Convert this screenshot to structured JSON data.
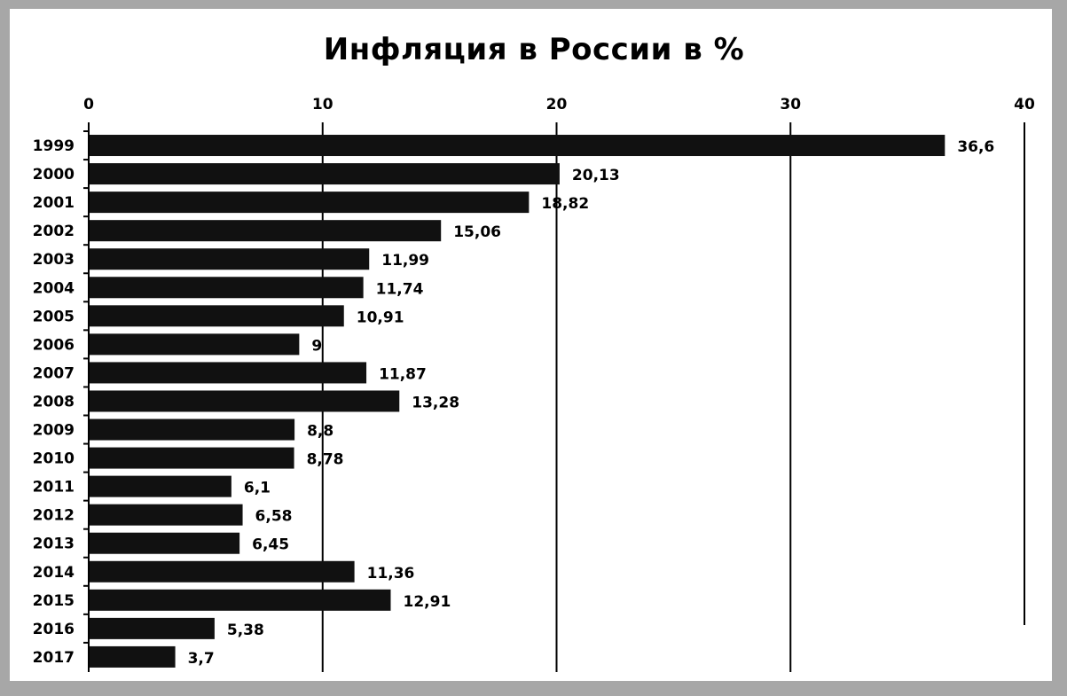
{
  "chart_data": {
    "type": "bar",
    "orientation": "horizontal",
    "title": "Инфляция в России в %",
    "categories": [
      "1999",
      "2000",
      "2001",
      "2002",
      "2003",
      "2004",
      "2005",
      "2006",
      "2007",
      "2008",
      "2009",
      "2010",
      "2011",
      "2012",
      "2013",
      "2014",
      "2015",
      "2016",
      "2017"
    ],
    "values": [
      36.6,
      20.13,
      18.82,
      15.06,
      11.99,
      11.74,
      10.91,
      9,
      11.87,
      13.28,
      8.8,
      8.78,
      6.1,
      6.58,
      6.45,
      11.36,
      12.91,
      5.38,
      3.7
    ],
    "value_labels": [
      "36,6",
      "20,13",
      "18,82",
      "15,06",
      "11,99",
      "11,74",
      "10,91",
      "9",
      "11,87",
      "13,28",
      "8,8",
      "8,78",
      "6,1",
      "6,58",
      "6,45",
      "11,36",
      "12,91",
      "5,38",
      "3,7"
    ],
    "xlim": [
      0,
      40
    ],
    "xticks": [
      0,
      10,
      20,
      30,
      40
    ],
    "xticks_position": "top",
    "grid": "vertical",
    "bar_color": "#111111"
  }
}
